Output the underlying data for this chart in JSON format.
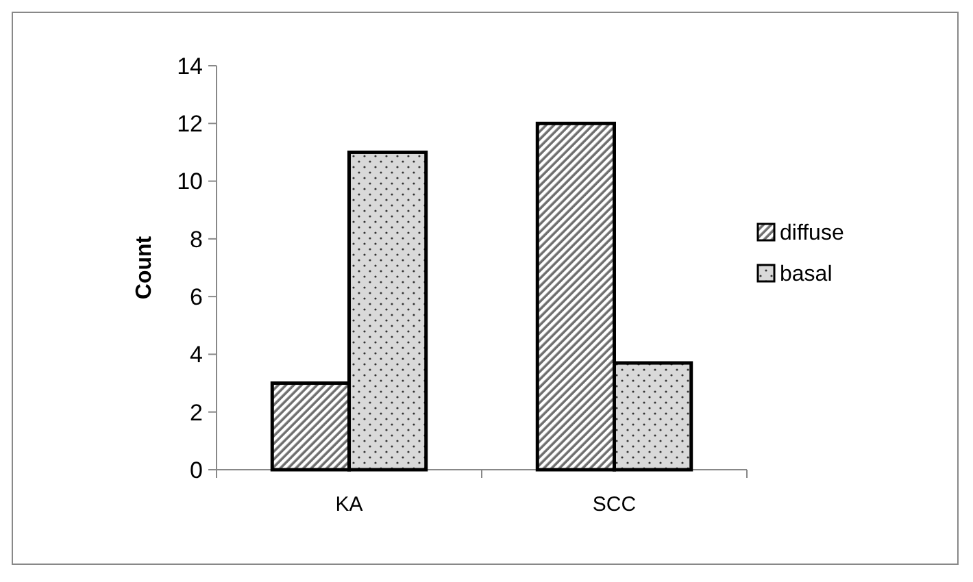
{
  "chart_data": {
    "type": "bar",
    "ylabel": "Count",
    "categories": [
      "KA",
      "SCC"
    ],
    "series": [
      {
        "name": "diffuse",
        "color": "#6e6e6e",
        "values": [
          3,
          12
        ]
      },
      {
        "name": "basal",
        "color": "#d9d9d9",
        "values": [
          11,
          3.7
        ]
      }
    ],
    "ylim": [
      0,
      14
    ],
    "yticks": [
      0,
      2,
      4,
      6,
      8,
      10,
      12,
      14
    ],
    "legend": "right",
    "grid": false
  }
}
